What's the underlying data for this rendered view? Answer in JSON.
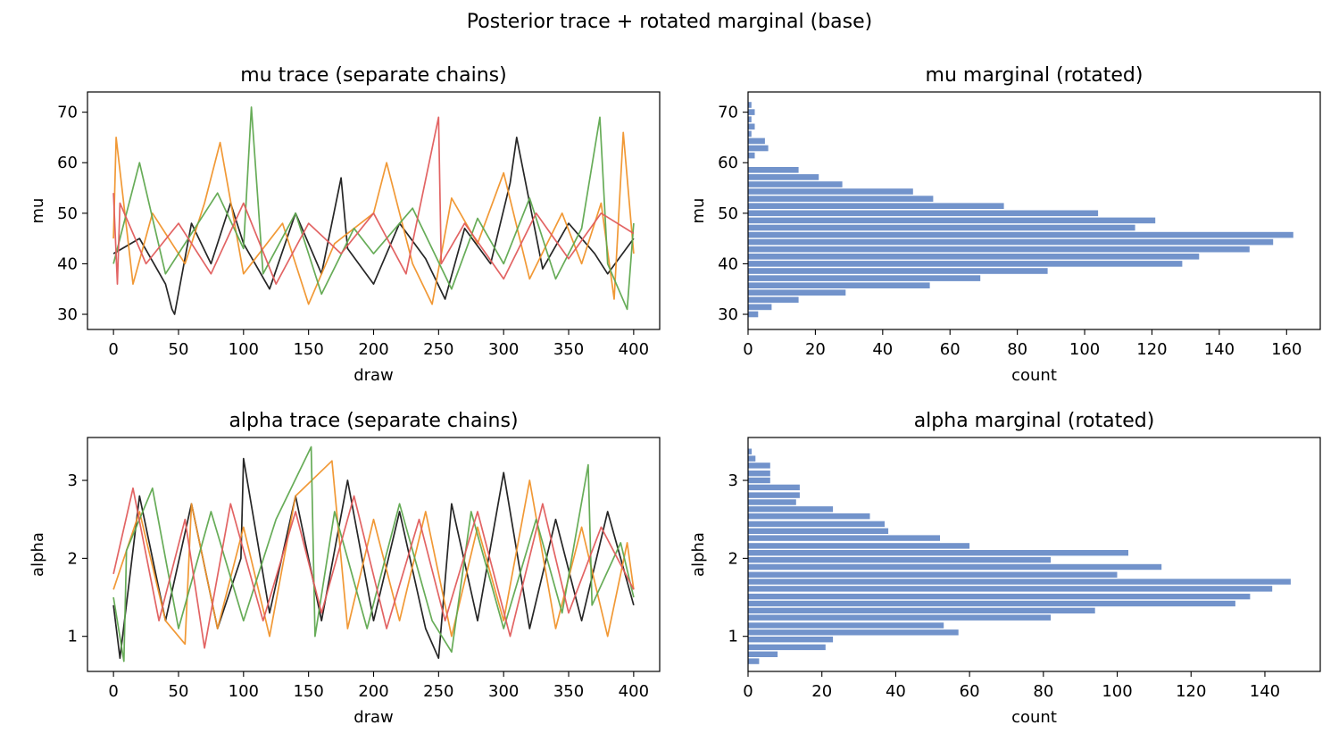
{
  "figure": {
    "suptitle": "Posterior trace + rotated marginal (base)",
    "colors": {
      "chain_colors": [
        "#1a1a1a",
        "#f0932b",
        "#5fa84f",
        "#e05c5c"
      ],
      "hist_fill": "#7293cb",
      "axis": "#000000"
    }
  },
  "chart_data": [
    {
      "type": "line",
      "title": "mu trace (separate chains)",
      "xlabel": "draw",
      "ylabel": "mu",
      "xlim": [
        -20,
        420
      ],
      "ylim": [
        27,
        74
      ],
      "xticks": [
        0,
        50,
        100,
        150,
        200,
        250,
        300,
        350,
        400
      ],
      "yticks": [
        30,
        40,
        50,
        60,
        70
      ],
      "series": [
        {
          "color": "#1a1a1a",
          "x": [
            0,
            20,
            40,
            45,
            47,
            60,
            75,
            90,
            100,
            120,
            140,
            160,
            175,
            180,
            200,
            220,
            240,
            255,
            270,
            290,
            305,
            310,
            330,
            350,
            370,
            380,
            400
          ],
          "y": [
            42,
            45,
            36,
            31,
            30,
            48,
            40,
            52,
            44,
            35,
            50,
            38,
            57,
            43,
            36,
            48,
            41,
            33,
            47,
            40,
            56,
            65,
            39,
            48,
            42,
            38,
            45
          ]
        },
        {
          "color": "#f0932b",
          "x": [
            0,
            2,
            15,
            30,
            55,
            70,
            82,
            100,
            130,
            150,
            170,
            200,
            210,
            230,
            245,
            260,
            280,
            300,
            320,
            345,
            360,
            375,
            385,
            392,
            400
          ],
          "y": [
            45,
            65,
            36,
            50,
            40,
            52,
            64,
            38,
            48,
            32,
            44,
            50,
            60,
            40,
            32,
            53,
            44,
            58,
            37,
            50,
            40,
            52,
            33,
            66,
            42
          ]
        },
        {
          "color": "#5fa84f",
          "x": [
            0,
            10,
            20,
            40,
            60,
            80,
            100,
            106,
            115,
            140,
            160,
            185,
            200,
            230,
            260,
            280,
            300,
            320,
            340,
            360,
            374,
            380,
            395,
            400
          ],
          "y": [
            40,
            50,
            60,
            38,
            46,
            54,
            43,
            71,
            38,
            50,
            34,
            47,
            42,
            51,
            35,
            49,
            40,
            53,
            37,
            47,
            69,
            40,
            31,
            48
          ]
        },
        {
          "color": "#e05c5c",
          "x": [
            0,
            3,
            5,
            25,
            50,
            75,
            100,
            125,
            150,
            175,
            200,
            225,
            250,
            252,
            270,
            300,
            325,
            350,
            375,
            400
          ],
          "y": [
            54,
            36,
            52,
            40,
            48,
            38,
            52,
            36,
            48,
            42,
            50,
            38,
            69,
            40,
            48,
            37,
            50,
            41,
            50,
            46
          ]
        }
      ]
    },
    {
      "type": "bar",
      "orientation": "horizontal",
      "title": "mu marginal (rotated)",
      "xlabel": "count",
      "ylabel": "mu",
      "xlim": [
        0,
        170
      ],
      "ylim": [
        27,
        74
      ],
      "xticks": [
        0,
        20,
        40,
        60,
        80,
        100,
        120,
        140,
        160
      ],
      "yticks": [
        30,
        40,
        50,
        60,
        70
      ],
      "bin_centers": [
        30.0,
        31.43,
        32.86,
        34.29,
        35.71,
        37.14,
        38.57,
        40.0,
        41.43,
        42.86,
        44.29,
        45.71,
        47.14,
        48.57,
        50.0,
        51.43,
        52.86,
        54.29,
        55.71,
        57.14,
        58.57,
        60.0,
        61.43,
        62.86,
        64.29,
        65.71,
        67.14,
        68.57,
        70.0,
        71.43
      ],
      "counts": [
        3,
        7,
        15,
        29,
        54,
        69,
        89,
        129,
        134,
        149,
        156,
        162,
        115,
        121,
        104,
        76,
        55,
        49,
        28,
        21,
        15,
        0,
        2,
        6,
        5,
        1,
        2,
        1,
        2,
        1
      ]
    },
    {
      "type": "line",
      "title": "alpha trace (separate chains)",
      "xlabel": "draw",
      "ylabel": "alpha",
      "xlim": [
        -20,
        420
      ],
      "ylim": [
        0.55,
        3.55
      ],
      "xticks": [
        0,
        50,
        100,
        150,
        200,
        250,
        300,
        350,
        400
      ],
      "yticks": [
        1,
        2,
        3
      ],
      "series": [
        {
          "color": "#1a1a1a",
          "x": [
            0,
            5,
            20,
            40,
            60,
            80,
            98,
            100,
            120,
            140,
            160,
            180,
            200,
            220,
            240,
            250,
            260,
            280,
            300,
            320,
            340,
            360,
            380,
            400
          ],
          "y": [
            1.4,
            0.72,
            2.8,
            1.2,
            2.7,
            1.1,
            2.0,
            3.28,
            1.3,
            2.8,
            1.2,
            3.0,
            1.2,
            2.6,
            1.1,
            0.72,
            2.7,
            1.2,
            3.1,
            1.1,
            2.5,
            1.2,
            2.6,
            1.4
          ]
        },
        {
          "color": "#f0932b",
          "x": [
            0,
            20,
            40,
            55,
            60,
            80,
            100,
            120,
            140,
            168,
            180,
            200,
            220,
            240,
            260,
            280,
            300,
            320,
            340,
            360,
            380,
            395,
            400
          ],
          "y": [
            1.6,
            2.6,
            1.2,
            0.9,
            2.7,
            1.1,
            2.4,
            1.0,
            2.8,
            3.25,
            1.1,
            2.5,
            1.2,
            2.6,
            1.0,
            2.4,
            1.2,
            3.0,
            1.1,
            2.4,
            1.0,
            2.2,
            1.6
          ]
        },
        {
          "color": "#5fa84f",
          "x": [
            0,
            8,
            10,
            30,
            50,
            75,
            100,
            125,
            152,
            155,
            170,
            195,
            220,
            245,
            260,
            275,
            300,
            325,
            345,
            365,
            368,
            390,
            400
          ],
          "y": [
            1.5,
            0.68,
            2.1,
            2.9,
            1.1,
            2.6,
            1.2,
            2.5,
            3.43,
            1.0,
            2.6,
            1.1,
            2.7,
            1.2,
            0.8,
            2.6,
            1.1,
            2.5,
            1.3,
            3.2,
            1.4,
            2.2,
            1.5
          ]
        },
        {
          "color": "#e05c5c",
          "x": [
            0,
            15,
            35,
            55,
            70,
            90,
            115,
            140,
            160,
            185,
            210,
            235,
            255,
            280,
            305,
            330,
            350,
            375,
            400
          ],
          "y": [
            1.8,
            2.9,
            1.2,
            2.5,
            0.85,
            2.7,
            1.2,
            2.6,
            1.3,
            2.8,
            1.1,
            2.5,
            1.2,
            2.6,
            1.0,
            2.7,
            1.3,
            2.4,
            1.6
          ]
        }
      ]
    },
    {
      "type": "bar",
      "orientation": "horizontal",
      "title": "alpha marginal (rotated)",
      "xlabel": "count",
      "ylabel": "alpha",
      "xlim": [
        0,
        155
      ],
      "ylim": [
        0.55,
        3.55
      ],
      "xticks": [
        0,
        20,
        40,
        60,
        80,
        100,
        120,
        140
      ],
      "yticks": [
        1,
        2,
        3
      ],
      "bin_centers": [
        0.68,
        0.77,
        0.86,
        0.96,
        1.05,
        1.14,
        1.24,
        1.33,
        1.42,
        1.51,
        1.61,
        1.7,
        1.79,
        1.89,
        1.98,
        2.07,
        2.16,
        2.26,
        2.35,
        2.44,
        2.54,
        2.63,
        2.72,
        2.81,
        2.91,
        3.0,
        3.09,
        3.19,
        3.28,
        3.37
      ],
      "counts": [
        3,
        8,
        21,
        23,
        57,
        53,
        82,
        94,
        132,
        136,
        142,
        147,
        100,
        112,
        82,
        103,
        60,
        52,
        38,
        37,
        33,
        23,
        13,
        14,
        14,
        6,
        6,
        6,
        2,
        1
      ]
    }
  ]
}
